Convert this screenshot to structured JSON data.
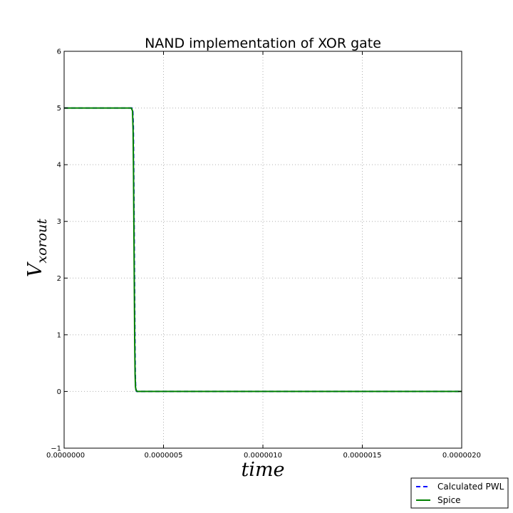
{
  "chart_data": {
    "type": "line",
    "title": "NAND implementation of XOR gate",
    "xlabel": "time",
    "ylabel_main": "V",
    "ylabel_sub": "xorout",
    "xlim": [
      0,
      2e-06
    ],
    "ylim": [
      -1,
      6
    ],
    "x_ticks": [
      0,
      5e-07,
      1e-06,
      1.5e-06,
      2e-06
    ],
    "x_tick_labels": [
      "0.0000000",
      "0.0000005",
      "0.0000010",
      "0.0000015",
      "0.0000020"
    ],
    "y_ticks": [
      -1,
      0,
      1,
      2,
      3,
      4,
      5,
      6
    ],
    "y_tick_labels": [
      "−1",
      "0",
      "1",
      "2",
      "3",
      "4",
      "5",
      "6"
    ],
    "grid": true,
    "legend_position": "bottom-right",
    "series": [
      {
        "name": "Calculated PWL",
        "color": "#0000ff",
        "style": "dashed",
        "x": [
          0,
          3.4e-07,
          3.45e-07,
          3.48e-07,
          3.5e-07,
          3.52e-07,
          3.54e-07,
          3.56e-07,
          3.58e-07,
          3.6e-07,
          3.65e-07,
          2e-06
        ],
        "y": [
          5,
          5,
          4.99,
          4.7,
          4.0,
          3.0,
          2.0,
          1.0,
          0.3,
          0.05,
          0,
          0
        ]
      },
      {
        "name": "Spice",
        "color": "#008000",
        "style": "solid",
        "x": [
          0,
          3.38e-07,
          3.44e-07,
          3.47e-07,
          3.49e-07,
          3.51e-07,
          3.53e-07,
          3.55e-07,
          3.57e-07,
          3.59e-07,
          3.62e-07,
          3.68e-07,
          2e-06
        ],
        "y": [
          5,
          5,
          4.95,
          4.6,
          3.9,
          2.9,
          1.9,
          0.9,
          0.3,
          0.08,
          0.02,
          0,
          0
        ]
      }
    ]
  }
}
